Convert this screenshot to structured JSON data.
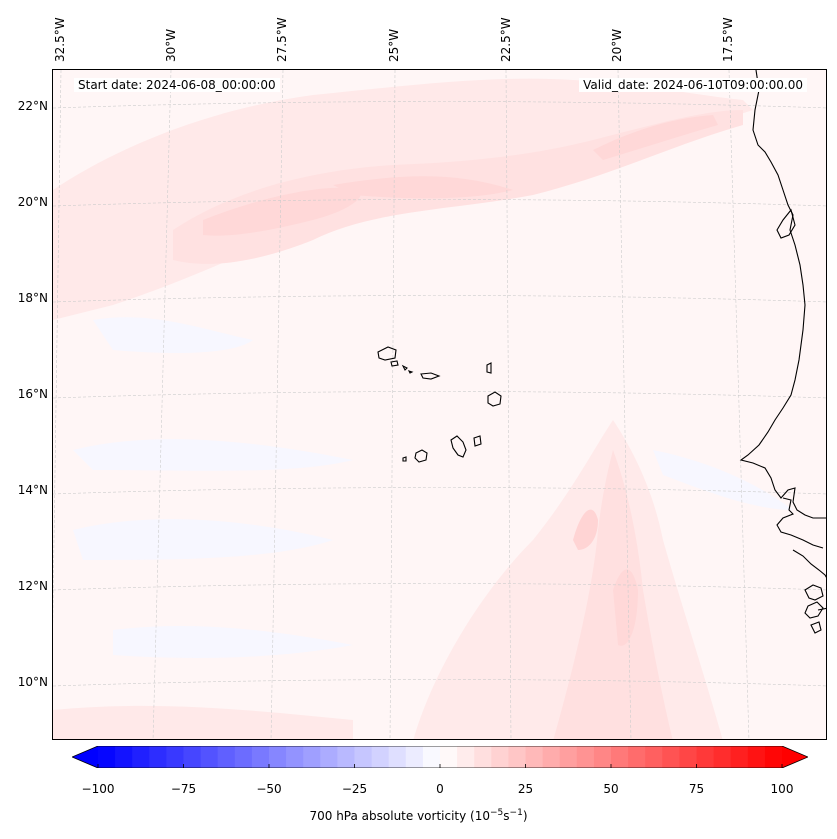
{
  "header": {
    "start_date": "Start date: 2024-06-08_00:00:00",
    "valid_date": "Valid_date: 2024-06-10T09:00:00.00"
  },
  "axes": {
    "lon_labels": [
      "32.5°W",
      "30°W",
      "27.5°W",
      "25°W",
      "22.5°W",
      "20°W",
      "17.5°W"
    ],
    "lat_labels": [
      "22°N",
      "20°N",
      "18°N",
      "16°N",
      "14°N",
      "12°N",
      "10°N"
    ]
  },
  "colorbar": {
    "ticks": [
      "−100",
      "−75",
      "−50",
      "−25",
      "0",
      "25",
      "50",
      "75",
      "100"
    ],
    "label_main": "700 hPa absolute vorticity (10",
    "label_exp1": "−5",
    "label_mid": "s",
    "label_exp2": "−1",
    "label_end": ")",
    "min_color": "#0000ff",
    "mid_color": "#ffffff",
    "max_color": "#ff0000"
  },
  "map": {
    "background_color": "#fff6f6",
    "coastline_color": "#000000",
    "grid_color": "#c8c8c8"
  }
}
